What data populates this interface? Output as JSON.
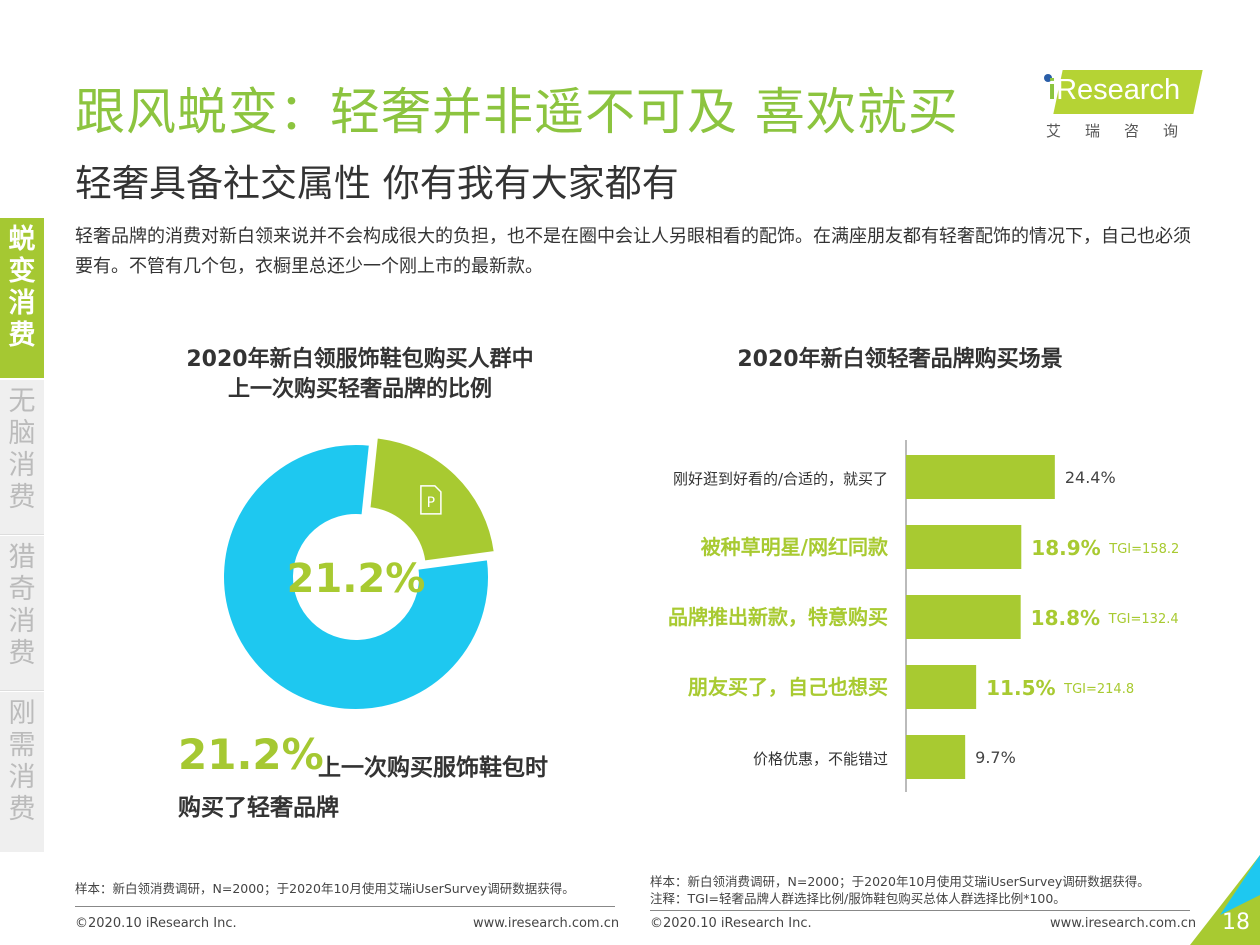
{
  "header": {
    "title": "跟风蜕变：轻奢并非遥不可及 喜欢就买",
    "subtitle": "轻奢具备社交属性 你有我有大家都有",
    "description": "轻奢品牌的消费对新白领来说并不会构成很大的负担，也不是在圈中会让人另眼相看的配饰。在满座朋友都有轻奢配饰的情况下，自己也必须要有。不管有几个包，衣橱里总还少一个刚上市的最新款。"
  },
  "logo": {
    "text": "iResearch",
    "cn": "艾瑞咨询"
  },
  "sidebar": {
    "items": [
      {
        "label": "蜕变消费",
        "active": true
      },
      {
        "label": "无脑消费"
      },
      {
        "label": "猎奇消费"
      },
      {
        "label": "刚需消费"
      }
    ]
  },
  "colors": {
    "green": "#a8ca31",
    "blue": "#1ec8f0",
    "title_green": "#8cc43f"
  },
  "chart_data": [
    {
      "type": "pie",
      "style": "donut",
      "title": "2020年新白领服饰鞋包购买人群中\n上一次购买轻奢品牌的比例",
      "title_lines": [
        "2020年新白领服饰鞋包购买人群中",
        "上一次购买轻奢品牌的比例"
      ],
      "center_label": "21.2%",
      "slices": [
        {
          "value": 21.2,
          "color": "#a8ca31",
          "icon": "parking-p-icon",
          "exploded": true
        },
        {
          "value": 78.8,
          "color": "#1ec8f0"
        }
      ],
      "callout": {
        "value": "21.2%",
        "text1": "上一次购买服饰鞋包时",
        "text2": "购买了轻奢品牌"
      }
    },
    {
      "type": "bar",
      "orientation": "horizontal",
      "title": "2020年新白领轻奢品牌购买场景",
      "categories": [
        "刚好逛到好看的/合适的，就买了",
        "被种草明星/网红同款",
        "品牌推出新款，特意购买",
        "朋友买了，自己也想买",
        "价格优惠，不能错过"
      ],
      "values": [
        24.4,
        18.9,
        18.8,
        11.5,
        9.7
      ],
      "labels": [
        "24.4%",
        "18.9%",
        "18.8%",
        "11.5%",
        "9.7%"
      ],
      "highlight": [
        false,
        true,
        true,
        true,
        false
      ],
      "tgi": [
        "",
        "TGI=158.2",
        "TGI=132.4",
        "TGI=214.8",
        ""
      ],
      "color": "#a8ca31"
    }
  ],
  "footer": {
    "left_note": "样本：新白领消费调研，N=2000；于2020年10月使用艾瑞iUserSurvey调研数据获得。",
    "right_note1": "样本：新白领消费调研，N=2000；于2020年10月使用艾瑞iUserSurvey调研数据获得。",
    "right_note2": "注释：TGI=轻奢品牌人群选择比例/服饰鞋包购买总体人群选择比例*100。",
    "copyright": "©2020.10 iResearch Inc.",
    "url": "www.iresearch.com.cn",
    "page": "18"
  }
}
